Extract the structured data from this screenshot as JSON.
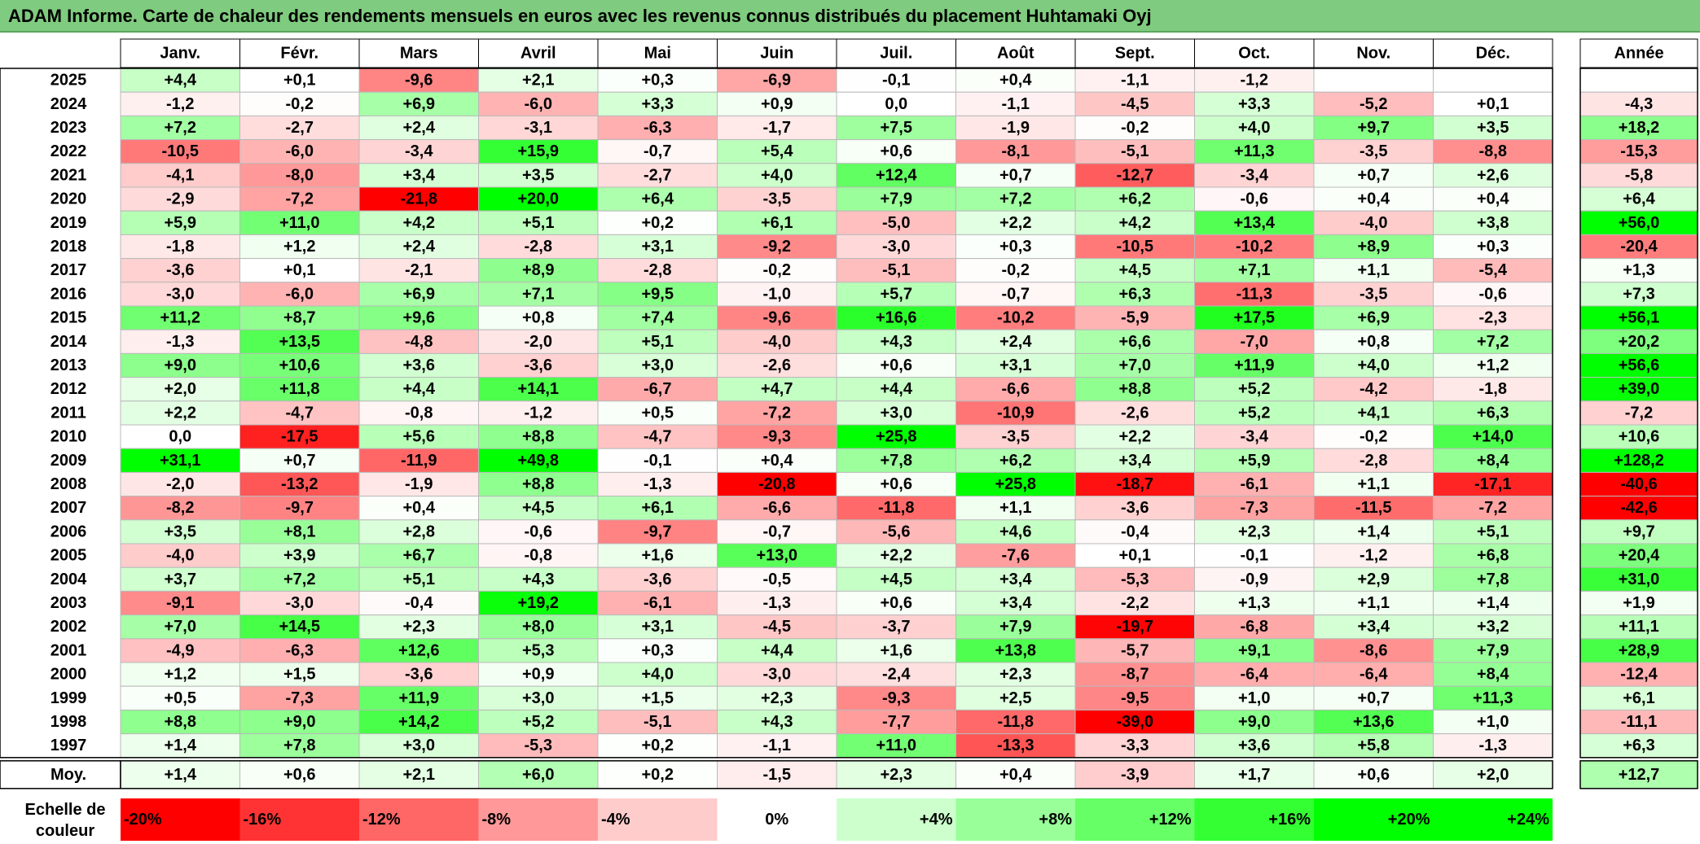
{
  "title": "ADAM Informe. Carte de chaleur des rendements mensuels en euros avec les revenus connus distribués du placement Huhtamaki Oyj",
  "chart_data": {
    "type": "heatmap",
    "columns": [
      "Janv.",
      "Févr.",
      "Mars",
      "Avril",
      "Mai",
      "Juin",
      "Juil.",
      "Août",
      "Sept.",
      "Oct.",
      "Nov.",
      "Déc."
    ],
    "year_header": "Année",
    "rows": [
      {
        "year": "2025",
        "values": [
          4.4,
          0.1,
          -9.6,
          2.1,
          0.3,
          -6.9,
          -0.1,
          0.4,
          -1.1,
          -1.2,
          null,
          null
        ],
        "annual": null
      },
      {
        "year": "2024",
        "values": [
          -1.2,
          -0.2,
          6.9,
          -6.0,
          3.3,
          0.9,
          0.0,
          -1.1,
          -4.5,
          3.3,
          -5.2,
          0.1
        ],
        "annual": -4.3
      },
      {
        "year": "2023",
        "values": [
          7.2,
          -2.7,
          2.4,
          -3.1,
          -6.3,
          -1.7,
          7.5,
          -1.9,
          -0.2,
          4.0,
          9.7,
          3.5
        ],
        "annual": 18.2
      },
      {
        "year": "2022",
        "values": [
          -10.5,
          -6.0,
          -3.4,
          15.9,
          -0.7,
          5.4,
          0.6,
          -8.1,
          -5.1,
          11.3,
          -3.5,
          -8.8
        ],
        "annual": -15.3
      },
      {
        "year": "2021",
        "values": [
          -4.1,
          -8.0,
          3.4,
          3.5,
          -2.7,
          4.0,
          12.4,
          0.7,
          -12.7,
          -3.4,
          0.7,
          2.6
        ],
        "annual": -5.8
      },
      {
        "year": "2020",
        "values": [
          -2.9,
          -7.2,
          -21.8,
          20.0,
          6.4,
          -3.5,
          7.9,
          7.2,
          6.2,
          -0.6,
          0.4,
          0.4
        ],
        "annual": 6.4
      },
      {
        "year": "2019",
        "values": [
          5.9,
          11.0,
          4.2,
          5.1,
          0.2,
          6.1,
          -5.0,
          2.2,
          4.2,
          13.4,
          -4.0,
          3.8
        ],
        "annual": 56.0
      },
      {
        "year": "2018",
        "values": [
          -1.8,
          1.2,
          2.4,
          -2.8,
          3.1,
          -9.2,
          -3.0,
          0.3,
          -10.5,
          -10.2,
          8.9,
          0.3
        ],
        "annual": -20.4
      },
      {
        "year": "2017",
        "values": [
          -3.6,
          0.1,
          -2.1,
          8.9,
          -2.8,
          -0.2,
          -5.1,
          -0.2,
          4.5,
          7.1,
          1.1,
          -5.4
        ],
        "annual": 1.3
      },
      {
        "year": "2016",
        "values": [
          -3.0,
          -6.0,
          6.9,
          7.1,
          9.5,
          -1.0,
          5.7,
          -0.7,
          6.3,
          -11.3,
          -3.5,
          -0.6
        ],
        "annual": 7.3
      },
      {
        "year": "2015",
        "values": [
          11.2,
          8.7,
          9.6,
          0.8,
          7.4,
          -9.6,
          16.6,
          -10.2,
          -5.9,
          17.5,
          6.9,
          -2.3
        ],
        "annual": 56.1
      },
      {
        "year": "2014",
        "values": [
          -1.3,
          13.5,
          -4.8,
          -2.0,
          5.1,
          -4.0,
          4.3,
          2.4,
          6.6,
          -7.0,
          0.8,
          7.2
        ],
        "annual": 20.2
      },
      {
        "year": "2013",
        "values": [
          9.0,
          10.6,
          3.6,
          -3.6,
          3.0,
          -2.6,
          0.6,
          3.1,
          7.0,
          11.9,
          4.0,
          1.2
        ],
        "annual": 56.6
      },
      {
        "year": "2012",
        "values": [
          2.0,
          11.8,
          4.4,
          14.1,
          -6.7,
          4.7,
          4.4,
          -6.6,
          8.8,
          5.2,
          -4.2,
          -1.8
        ],
        "annual": 39.0
      },
      {
        "year": "2011",
        "values": [
          2.2,
          -4.7,
          -0.8,
          -1.2,
          0.5,
          -7.2,
          3.0,
          -10.9,
          -2.6,
          5.2,
          4.1,
          6.3
        ],
        "annual": -7.2
      },
      {
        "year": "2010",
        "values": [
          0.0,
          -17.5,
          5.6,
          8.8,
          -4.7,
          -9.3,
          25.8,
          -3.5,
          2.2,
          -3.4,
          -0.2,
          14.0
        ],
        "annual": 10.6
      },
      {
        "year": "2009",
        "values": [
          31.1,
          0.7,
          -11.9,
          49.8,
          -0.1,
          0.4,
          7.8,
          6.2,
          3.4,
          5.9,
          -2.8,
          8.4
        ],
        "annual": 128.2
      },
      {
        "year": "2008",
        "values": [
          -2.0,
          -13.2,
          -1.9,
          8.8,
          -1.3,
          -20.8,
          0.6,
          25.8,
          -18.7,
          -6.1,
          1.1,
          -17.1
        ],
        "annual": -40.6
      },
      {
        "year": "2007",
        "values": [
          -8.2,
          -9.7,
          0.4,
          4.5,
          6.1,
          -6.6,
          -11.8,
          1.1,
          -3.6,
          -7.3,
          -11.5,
          -7.2
        ],
        "annual": -42.6
      },
      {
        "year": "2006",
        "values": [
          3.5,
          8.1,
          2.8,
          -0.6,
          -9.7,
          -0.7,
          -5.6,
          4.6,
          -0.4,
          2.3,
          1.4,
          5.1
        ],
        "annual": 9.7
      },
      {
        "year": "2005",
        "values": [
          -4.0,
          3.9,
          6.7,
          -0.8,
          1.6,
          13.0,
          2.2,
          -7.6,
          0.1,
          -0.1,
          -1.2,
          6.8
        ],
        "annual": 20.4
      },
      {
        "year": "2004",
        "values": [
          3.7,
          7.2,
          5.1,
          4.3,
          -3.6,
          -0.5,
          4.5,
          3.4,
          -5.3,
          -0.9,
          2.9,
          7.8
        ],
        "annual": 31.0
      },
      {
        "year": "2003",
        "values": [
          -9.1,
          -3.0,
          -0.4,
          19.2,
          -6.1,
          -1.3,
          0.6,
          3.4,
          -2.2,
          1.3,
          1.1,
          1.4
        ],
        "annual": 1.9
      },
      {
        "year": "2002",
        "values": [
          7.0,
          14.5,
          2.3,
          8.0,
          3.1,
          -4.5,
          -3.7,
          7.9,
          -19.7,
          -6.8,
          3.4,
          3.2
        ],
        "annual": 11.1
      },
      {
        "year": "2001",
        "values": [
          -4.9,
          -6.3,
          12.6,
          5.3,
          0.3,
          4.4,
          1.6,
          13.8,
          -5.7,
          9.1,
          -8.6,
          7.9
        ],
        "annual": 28.9
      },
      {
        "year": "2000",
        "values": [
          1.2,
          1.5,
          -3.6,
          0.9,
          4.0,
          -3.0,
          -2.4,
          2.3,
          -8.7,
          -6.4,
          -6.4,
          8.4
        ],
        "annual": -12.4
      },
      {
        "year": "1999",
        "values": [
          0.5,
          -7.3,
          11.9,
          3.0,
          1.5,
          2.3,
          -9.3,
          2.5,
          -9.5,
          1.0,
          0.7,
          11.3
        ],
        "annual": 6.1
      },
      {
        "year": "1998",
        "values": [
          8.8,
          9.0,
          14.2,
          5.2,
          -5.1,
          4.3,
          -7.7,
          -11.8,
          -39.0,
          9.0,
          13.6,
          1.0
        ],
        "annual": -11.1
      },
      {
        "year": "1997",
        "values": [
          1.4,
          7.8,
          3.0,
          -5.3,
          0.2,
          -1.1,
          11.0,
          -13.3,
          -3.3,
          3.6,
          5.8,
          -1.3
        ],
        "annual": 6.3
      }
    ],
    "average": {
      "label": "Moy.",
      "values": [
        1.4,
        0.6,
        2.1,
        6.0,
        0.2,
        -1.5,
        2.3,
        0.4,
        -3.9,
        1.7,
        0.6,
        2.0
      ],
      "annual": 12.7
    },
    "scale": {
      "label_line1": "Echelle de",
      "label_line2": "couleur",
      "steps": [
        {
          "label": "-20%",
          "value": -20
        },
        {
          "label": "-16%",
          "value": -16
        },
        {
          "label": "-12%",
          "value": -12
        },
        {
          "label": "-8%",
          "value": -8
        },
        {
          "label": "-4%",
          "value": -4
        },
        {
          "label": "0%",
          "value": 0
        },
        {
          "label": "+4%",
          "value": 4
        },
        {
          "label": "+8%",
          "value": 8
        },
        {
          "label": "+12%",
          "value": 12
        },
        {
          "label": "+16%",
          "value": 16
        },
        {
          "label": "+20%",
          "value": 20
        },
        {
          "label": "+24%",
          "value": 24
        }
      ]
    },
    "colors": {
      "negative": "#ff0000",
      "neutral": "#ffffff",
      "positive": "#00ff00",
      "title_bar": "#7fcb7f"
    }
  }
}
